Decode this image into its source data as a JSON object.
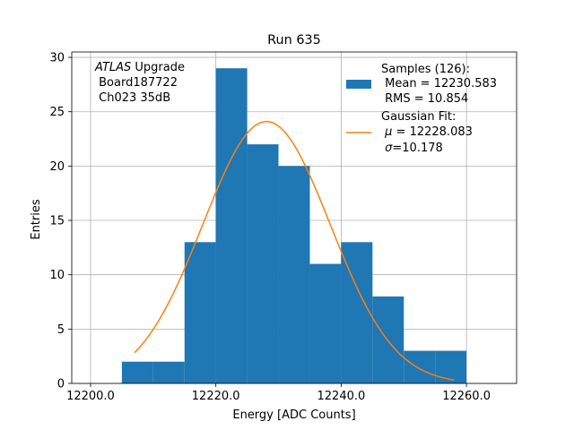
{
  "chart_data": {
    "type": "bar",
    "title": "Run 635",
    "xlabel": "Energy [ADC Counts]",
    "ylabel": "Entries",
    "xlim": [
      12197.0,
      12268.0
    ],
    "ylim": [
      0,
      30.5
    ],
    "xticks": [
      12200.0,
      12220.0,
      12240.0,
      12260.0
    ],
    "xtick_labels": [
      "12200.0",
      "12220.0",
      "12240.0",
      "12260.0"
    ],
    "yticks": [
      0,
      5,
      10,
      15,
      20,
      25,
      30
    ],
    "ytick_labels": [
      "0",
      "5",
      "10",
      "15",
      "20",
      "25",
      "30"
    ],
    "grid": true,
    "annotation": {
      "italic": "ATLAS",
      "line1_rest": " Upgrade",
      "line2": " Board187722",
      "line3": " Ch023 35dB"
    },
    "histogram": {
      "color": "#1f77b4",
      "bin_edges": [
        12205.0,
        12210.0,
        12215.0,
        12220.0,
        12225.0,
        12230.0,
        12235.0,
        12240.0,
        12245.0,
        12250.0,
        12255.0,
        12260.0
      ],
      "counts": [
        2,
        2,
        13,
        29,
        22,
        20,
        11,
        13,
        8,
        3,
        3
      ]
    },
    "fit": {
      "color": "#ff7f0e",
      "mu": 12228.083,
      "sigma": 10.178,
      "amplitude": 24.1,
      "x_start": 12207.0,
      "x_end": 12258.0
    },
    "legend": {
      "placement": "top-right",
      "entries": [
        {
          "kind": "patch",
          "line1": "Samples (126):",
          "line2": " Mean = 12230.583",
          "line3": " RMS = 10.854"
        },
        {
          "kind": "line",
          "line1": "Gaussian Fit:",
          "line2_mu_prefix": " ",
          "line2_mu_symbol": "μ",
          "line2_mu_value": " = 12228.083",
          "line3_sigma_prefix": " ",
          "line3_sigma_symbol": "σ",
          "line3_sigma_value": "=10.178"
        }
      ]
    }
  }
}
